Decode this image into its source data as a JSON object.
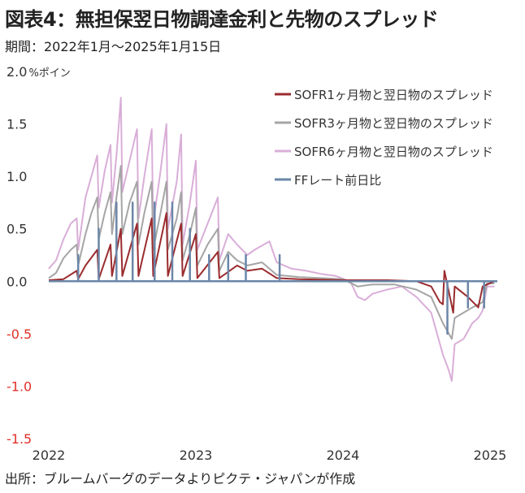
{
  "title": "図表4：無担保翌日物調達金利と先物のスプレッド",
  "period": "期間：2022年1月～2025年1月15日",
  "source": "出所：ブルームバーグのデータよりピクテ・ジャパンが作成",
  "colors": {
    "sofr1": "#9b2b2e",
    "sofr3": "#a5a5a5",
    "sofr6": "#d9aed8",
    "ff": "#6b86a8",
    "negative": "#e0302a"
  },
  "chart_data": {
    "type": "line",
    "ylim": [
      -1.5,
      2.0
    ],
    "xlim": [
      2022.0,
      2025.05
    ],
    "y_ticks": [
      {
        "value": 2.0,
        "label": "2.0"
      },
      {
        "value": 1.5,
        "label": "1.5"
      },
      {
        "value": 1.0,
        "label": "1.0"
      },
      {
        "value": 0.5,
        "label": "0.5"
      },
      {
        "value": 0.0,
        "label": "0.0"
      },
      {
        "value": -0.5,
        "label": "-0.5"
      },
      {
        "value": -1.0,
        "label": "-1.0"
      },
      {
        "value": -1.5,
        "label": "-1.5"
      }
    ],
    "y_unit": "%ポイン",
    "x_ticks": [
      {
        "value": 2022.0,
        "label": "2022"
      },
      {
        "value": 2023.0,
        "label": "2023"
      },
      {
        "value": 2024.0,
        "label": "2024"
      },
      {
        "value": 2025.0,
        "label": "2025"
      }
    ],
    "legend_position": "top-right",
    "series": [
      {
        "name": "SOFR6ヶ月物と翌日物のスプレッド",
        "key": "sofr6",
        "points": [
          [
            2022.0,
            0.12
          ],
          [
            2022.05,
            0.2
          ],
          [
            2022.1,
            0.4
          ],
          [
            2022.15,
            0.55
          ],
          [
            2022.19,
            0.6
          ],
          [
            2022.2,
            0.3
          ],
          [
            2022.25,
            0.8
          ],
          [
            2022.29,
            1.0
          ],
          [
            2022.33,
            1.2
          ],
          [
            2022.34,
            0.7
          ],
          [
            2022.38,
            1.05
          ],
          [
            2022.42,
            1.3
          ],
          [
            2022.43,
            0.75
          ],
          [
            2022.46,
            1.2
          ],
          [
            2022.49,
            1.75
          ],
          [
            2022.5,
            0.85
          ],
          [
            2022.55,
            1.15
          ],
          [
            2022.6,
            1.45
          ],
          [
            2022.61,
            0.6
          ],
          [
            2022.65,
            1.0
          ],
          [
            2022.7,
            1.45
          ],
          [
            2022.71,
            0.55
          ],
          [
            2022.76,
            1.05
          ],
          [
            2022.8,
            1.5
          ],
          [
            2022.81,
            0.5
          ],
          [
            2022.87,
            0.95
          ],
          [
            2022.9,
            1.4
          ],
          [
            2022.91,
            0.35
          ],
          [
            2022.96,
            0.75
          ],
          [
            2023.0,
            1.15
          ],
          [
            2023.01,
            0.3
          ],
          [
            2023.08,
            0.55
          ],
          [
            2023.15,
            0.8
          ],
          [
            2023.16,
            0.2
          ],
          [
            2023.22,
            0.45
          ],
          [
            2023.28,
            0.35
          ],
          [
            2023.35,
            0.25
          ],
          [
            2023.4,
            0.3
          ],
          [
            2023.5,
            0.38
          ],
          [
            2023.55,
            0.18
          ],
          [
            2023.65,
            0.12
          ],
          [
            2023.75,
            0.1
          ],
          [
            2023.85,
            0.07
          ],
          [
            2023.95,
            0.05
          ],
          [
            2024.05,
            0.0
          ],
          [
            2024.1,
            -0.15
          ],
          [
            2024.15,
            -0.18
          ],
          [
            2024.2,
            -0.12
          ],
          [
            2024.3,
            -0.08
          ],
          [
            2024.4,
            -0.05
          ],
          [
            2024.5,
            -0.15
          ],
          [
            2024.6,
            -0.3
          ],
          [
            2024.68,
            -0.7
          ],
          [
            2024.72,
            -0.85
          ],
          [
            2024.74,
            -0.95
          ],
          [
            2024.76,
            -0.6
          ],
          [
            2024.82,
            -0.55
          ],
          [
            2024.88,
            -0.4
          ],
          [
            2024.92,
            -0.35
          ],
          [
            2024.95,
            -0.28
          ],
          [
            2024.98,
            -0.05
          ],
          [
            2025.03,
            -0.05
          ]
        ]
      },
      {
        "name": "SOFR3ヶ月物と翌日物のスプレッド",
        "key": "sofr3",
        "points": [
          [
            2022.0,
            0.03
          ],
          [
            2022.05,
            0.08
          ],
          [
            2022.1,
            0.22
          ],
          [
            2022.15,
            0.3
          ],
          [
            2022.19,
            0.35
          ],
          [
            2022.2,
            0.15
          ],
          [
            2022.25,
            0.45
          ],
          [
            2022.29,
            0.65
          ],
          [
            2022.33,
            0.8
          ],
          [
            2022.34,
            0.4
          ],
          [
            2022.38,
            0.65
          ],
          [
            2022.42,
            0.85
          ],
          [
            2022.43,
            0.45
          ],
          [
            2022.46,
            0.8
          ],
          [
            2022.49,
            1.1
          ],
          [
            2022.5,
            0.45
          ],
          [
            2022.55,
            0.75
          ],
          [
            2022.6,
            0.95
          ],
          [
            2022.61,
            0.35
          ],
          [
            2022.65,
            0.65
          ],
          [
            2022.7,
            0.95
          ],
          [
            2022.71,
            0.3
          ],
          [
            2022.76,
            0.65
          ],
          [
            2022.8,
            0.95
          ],
          [
            2022.81,
            0.3
          ],
          [
            2022.87,
            0.6
          ],
          [
            2022.9,
            0.85
          ],
          [
            2022.91,
            0.2
          ],
          [
            2022.96,
            0.45
          ],
          [
            2023.0,
            0.7
          ],
          [
            2023.01,
            0.15
          ],
          [
            2023.08,
            0.35
          ],
          [
            2023.15,
            0.5
          ],
          [
            2023.16,
            0.1
          ],
          [
            2023.22,
            0.28
          ],
          [
            2023.28,
            0.2
          ],
          [
            2023.35,
            0.15
          ],
          [
            2023.45,
            0.18
          ],
          [
            2023.55,
            0.06
          ],
          [
            2023.7,
            0.04
          ],
          [
            2023.85,
            0.03
          ],
          [
            2024.0,
            0.02
          ],
          [
            2024.1,
            -0.05
          ],
          [
            2024.2,
            -0.03
          ],
          [
            2024.35,
            -0.03
          ],
          [
            2024.5,
            -0.08
          ],
          [
            2024.6,
            -0.15
          ],
          [
            2024.68,
            -0.4
          ],
          [
            2024.72,
            -0.5
          ],
          [
            2024.74,
            -0.55
          ],
          [
            2024.76,
            -0.35
          ],
          [
            2024.82,
            -0.3
          ],
          [
            2024.88,
            -0.25
          ],
          [
            2024.92,
            -0.22
          ],
          [
            2024.95,
            -0.2
          ],
          [
            2024.98,
            -0.02
          ],
          [
            2025.03,
            -0.02
          ]
        ]
      },
      {
        "name": "SOFR1ヶ月物と翌日物のスプレッド",
        "key": "sofr1",
        "points": [
          [
            2022.0,
            0.01
          ],
          [
            2022.1,
            0.02
          ],
          [
            2022.19,
            0.1
          ],
          [
            2022.2,
            0.02
          ],
          [
            2022.25,
            0.15
          ],
          [
            2022.33,
            0.3
          ],
          [
            2022.34,
            0.02
          ],
          [
            2022.42,
            0.35
          ],
          [
            2022.43,
            0.05
          ],
          [
            2022.49,
            0.5
          ],
          [
            2022.5,
            0.05
          ],
          [
            2022.6,
            0.55
          ],
          [
            2022.61,
            0.05
          ],
          [
            2022.7,
            0.6
          ],
          [
            2022.71,
            0.05
          ],
          [
            2022.8,
            0.65
          ],
          [
            2022.81,
            0.05
          ],
          [
            2022.9,
            0.55
          ],
          [
            2022.91,
            0.05
          ],
          [
            2023.0,
            0.45
          ],
          [
            2023.01,
            0.03
          ],
          [
            2023.15,
            0.28
          ],
          [
            2023.16,
            0.03
          ],
          [
            2023.28,
            0.15
          ],
          [
            2023.35,
            0.1
          ],
          [
            2023.45,
            0.12
          ],
          [
            2023.55,
            0.03
          ],
          [
            2023.7,
            0.02
          ],
          [
            2024.0,
            0.01
          ],
          [
            2024.3,
            0.01
          ],
          [
            2024.5,
            0.0
          ],
          [
            2024.6,
            -0.05
          ],
          [
            2024.66,
            -0.2
          ],
          [
            2024.68,
            -0.22
          ],
          [
            2024.69,
            0.1
          ],
          [
            2024.72,
            -0.1
          ],
          [
            2024.75,
            -0.3
          ],
          [
            2024.76,
            -0.05
          ],
          [
            2024.85,
            -0.15
          ],
          [
            2024.92,
            -0.25
          ],
          [
            2024.95,
            -0.05
          ],
          [
            2025.03,
            0.0
          ]
        ]
      },
      {
        "name": "FFレート前日比",
        "key": "ff",
        "points": [
          [
            2022.0,
            0.0
          ],
          [
            2022.2,
            0.0
          ],
          [
            2022.2,
            0.25
          ],
          [
            2022.2,
            0.0
          ],
          [
            2022.34,
            0.0
          ],
          [
            2022.34,
            0.5
          ],
          [
            2022.34,
            0.0
          ],
          [
            2022.46,
            0.0
          ],
          [
            2022.46,
            0.75
          ],
          [
            2022.46,
            0.0
          ],
          [
            2022.57,
            0.0
          ],
          [
            2022.57,
            0.75
          ],
          [
            2022.57,
            0.0
          ],
          [
            2022.72,
            0.0
          ],
          [
            2022.72,
            0.75
          ],
          [
            2022.72,
            0.0
          ],
          [
            2022.84,
            0.0
          ],
          [
            2022.84,
            0.75
          ],
          [
            2022.84,
            0.0
          ],
          [
            2022.96,
            0.0
          ],
          [
            2022.96,
            0.5
          ],
          [
            2022.96,
            0.0
          ],
          [
            2023.09,
            0.0
          ],
          [
            2023.09,
            0.25
          ],
          [
            2023.09,
            0.0
          ],
          [
            2023.22,
            0.0
          ],
          [
            2023.22,
            0.25
          ],
          [
            2023.22,
            0.0
          ],
          [
            2023.34,
            0.0
          ],
          [
            2023.34,
            0.25
          ],
          [
            2023.34,
            0.0
          ],
          [
            2023.57,
            0.0
          ],
          [
            2023.57,
            0.25
          ],
          [
            2023.57,
            0.0
          ],
          [
            2024.71,
            0.0
          ],
          [
            2024.71,
            -0.5
          ],
          [
            2024.71,
            0.0
          ],
          [
            2024.85,
            0.0
          ],
          [
            2024.85,
            -0.25
          ],
          [
            2024.85,
            0.0
          ],
          [
            2024.96,
            0.0
          ],
          [
            2024.96,
            -0.25
          ],
          [
            2024.96,
            0.0
          ],
          [
            2025.04,
            0.0
          ]
        ]
      }
    ],
    "legend_order": [
      "sofr1",
      "sofr3",
      "sofr6",
      "ff"
    ],
    "legend_labels": {
      "sofr1": "SOFR1ヶ月物と翌日物のスプレッド",
      "sofr3": "SOFR3ヶ月物と翌日物のスプレッド",
      "sofr6": "SOFR6ヶ月物と翌日物のスプレッド",
      "ff": "FFレート前日比"
    }
  }
}
